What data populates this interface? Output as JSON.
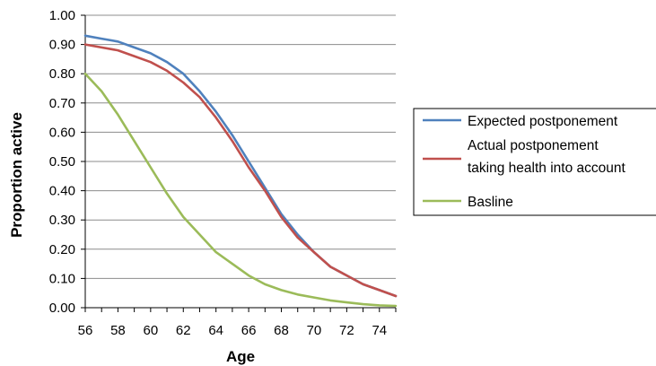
{
  "chart_data": {
    "type": "line",
    "title": "",
    "xlabel": "Age",
    "ylabel": "Proportion active",
    "xlim": [
      56,
      75
    ],
    "ylim": [
      0,
      1
    ],
    "x_ticks": [
      56,
      58,
      60,
      62,
      64,
      66,
      68,
      70,
      72,
      74
    ],
    "y_ticks": [
      "0.00",
      "0.10",
      "0.20",
      "0.30",
      "0.40",
      "0.50",
      "0.60",
      "0.70",
      "0.80",
      "0.90",
      "1.00"
    ],
    "grid": "horizontal",
    "legend": "right",
    "x": [
      56,
      57,
      58,
      59,
      60,
      61,
      62,
      63,
      64,
      65,
      66,
      67,
      68,
      69,
      70,
      71,
      72,
      73,
      74,
      75
    ],
    "series": [
      {
        "name": "Expected postponement",
        "color": "#4f81bd",
        "values": [
          0.93,
          0.92,
          0.91,
          0.89,
          0.87,
          0.84,
          0.8,
          0.74,
          0.67,
          0.59,
          0.5,
          0.41,
          0.32,
          0.25,
          0.19,
          0.14,
          0.11,
          0.08,
          0.06,
          0.04
        ]
      },
      {
        "name": "Actual postponement\ntaking health into account",
        "color": "#c0504d",
        "values": [
          0.9,
          0.89,
          0.88,
          0.86,
          0.84,
          0.81,
          0.77,
          0.72,
          0.65,
          0.57,
          0.48,
          0.4,
          0.31,
          0.24,
          0.19,
          0.14,
          0.11,
          0.08,
          0.06,
          0.04
        ]
      },
      {
        "name": "Basline",
        "color": "#9bbb59",
        "values": [
          0.8,
          0.74,
          0.66,
          0.57,
          0.48,
          0.39,
          0.31,
          0.25,
          0.19,
          0.15,
          0.11,
          0.08,
          0.06,
          0.045,
          0.035,
          0.025,
          0.018,
          0.012,
          0.008,
          0.006
        ]
      }
    ]
  }
}
